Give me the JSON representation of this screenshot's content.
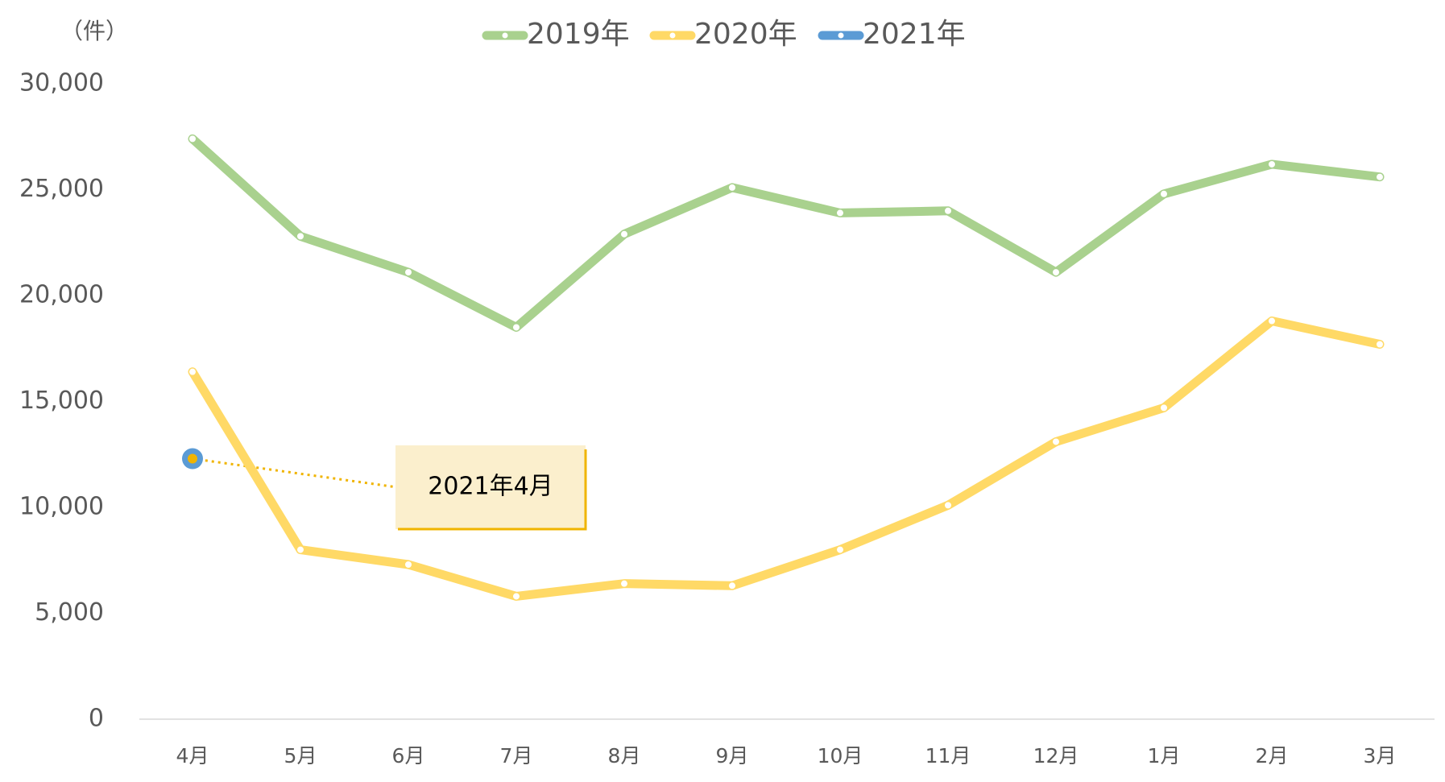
{
  "chart_data": {
    "type": "line",
    "y_axis_label": "（件）",
    "categories": [
      "4月",
      "5月",
      "6月",
      "7月",
      "8月",
      "9月",
      "10月",
      "11月",
      "12月",
      "1月",
      "2月",
      "3月"
    ],
    "series": [
      {
        "name": "2019年",
        "color": "#a9d18e",
        "values": [
          27400,
          22800,
          21100,
          18500,
          22900,
          25100,
          23900,
          24000,
          21100,
          24800,
          26200,
          25600
        ]
      },
      {
        "name": "2020年",
        "color": "#ffd966",
        "values": [
          16400,
          8000,
          7300,
          5800,
          6400,
          6300,
          8000,
          10100,
          13100,
          14700,
          18800,
          17700
        ]
      },
      {
        "name": "2021年",
        "color": "#5b9bd5",
        "values": [
          12300,
          null,
          null,
          null,
          null,
          null,
          null,
          null,
          null,
          null,
          null,
          null
        ]
      }
    ],
    "annotations": [
      {
        "text": "2021年4月"
      }
    ],
    "ylim": [
      0,
      30000
    ],
    "yticks": [
      0,
      {
        "value": 5000,
        "label": "5,000"
      },
      {
        "value": 10000,
        "label": "10,000"
      },
      {
        "value": 15000,
        "label": "15,000"
      },
      {
        "value": 20000,
        "label": "20,000"
      },
      {
        "value": 25000,
        "label": "25,000"
      },
      {
        "value": 30000,
        "label": "30,000"
      }
    ],
    "grid": false,
    "legend": "top"
  }
}
